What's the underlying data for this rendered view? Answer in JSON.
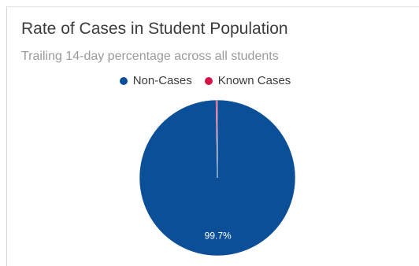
{
  "chart_data": {
    "type": "pie",
    "title": "Rate of Cases in Student Population",
    "subtitle": "Trailing 14-day percentage across all students",
    "categories": [
      "Non-Cases",
      "Known Cases"
    ],
    "values": [
      99.7,
      0.3
    ],
    "colors": [
      "#0b4f99",
      "#d2144b"
    ],
    "data_labels": [
      "99.7%",
      ""
    ],
    "legend_position": "top"
  }
}
